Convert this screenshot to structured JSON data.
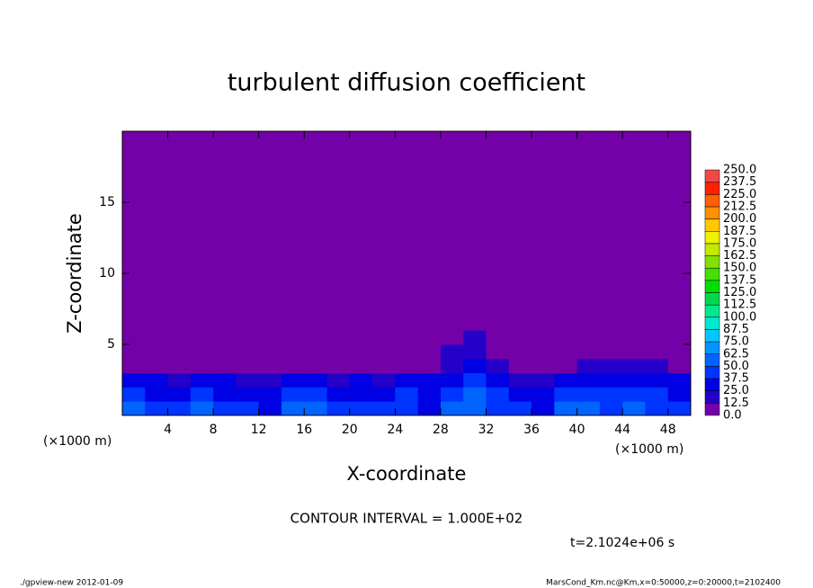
{
  "chart_data": {
    "type": "heatmap",
    "title": "turbulent diffusion coefficient",
    "xlabel": "X-coordinate",
    "ylabel": "Z-coordinate",
    "xunit_left": "(×1000 m)",
    "xunit_right": "(×1000 m)",
    "xlim": [
      0,
      50
    ],
    "ylim": [
      0,
      20
    ],
    "xticks": [
      4,
      8,
      12,
      16,
      20,
      24,
      28,
      32,
      36,
      40,
      44,
      48
    ],
    "yticks": [
      5,
      10,
      15
    ],
    "xbins": [
      0,
      2,
      4,
      6,
      8,
      10,
      12,
      14,
      16,
      18,
      20,
      22,
      24,
      26,
      28,
      30,
      32,
      34,
      36,
      38,
      40,
      42,
      44,
      46,
      48,
      50
    ],
    "ybins": [
      0,
      1,
      2,
      3,
      4,
      5,
      6,
      20
    ],
    "z": [
      [
        50,
        45,
        40,
        55,
        45,
        40,
        35,
        60,
        50,
        40,
        45,
        40,
        45,
        35,
        50,
        55,
        45,
        40,
        30,
        50,
        55,
        45,
        50,
        45,
        40
      ],
      [
        40,
        35,
        30,
        40,
        35,
        30,
        30,
        45,
        40,
        30,
        35,
        35,
        40,
        30,
        45,
        50,
        40,
        30,
        25,
        40,
        45,
        40,
        45,
        40,
        35
      ],
      [
        25,
        25,
        20,
        25,
        25,
        20,
        20,
        30,
        25,
        20,
        25,
        20,
        30,
        25,
        35,
        40,
        30,
        20,
        15,
        30,
        35,
        30,
        35,
        30,
        25
      ],
      [
        0,
        0,
        0,
        0,
        0,
        0,
        0,
        0,
        0,
        0,
        0,
        0,
        0,
        0,
        20,
        25,
        15,
        0,
        0,
        0,
        15,
        15,
        20,
        15,
        0
      ],
      [
        0,
        0,
        0,
        0,
        0,
        0,
        0,
        0,
        0,
        0,
        0,
        0,
        0,
        0,
        15,
        13,
        0,
        0,
        0,
        0,
        0,
        0,
        0,
        0,
        0
      ],
      [
        0,
        0,
        0,
        0,
        0,
        0,
        0,
        0,
        0,
        0,
        0,
        0,
        0,
        0,
        0,
        13,
        0,
        0,
        0,
        0,
        0,
        0,
        0,
        0,
        0
      ],
      [
        0,
        0,
        0,
        0,
        0,
        0,
        0,
        0,
        0,
        0,
        0,
        0,
        0,
        0,
        0,
        0,
        0,
        0,
        0,
        0,
        0,
        0,
        0,
        0,
        0
      ]
    ],
    "colorbar": {
      "levels": [
        {
          "value": 0,
          "label": "0.0"
        },
        {
          "value": 12.5,
          "label": "12.5"
        },
        {
          "value": 25,
          "label": "25.0"
        },
        {
          "value": 37.5,
          "label": "37.5"
        },
        {
          "value": 50,
          "label": "50.0"
        },
        {
          "value": 62.5,
          "label": "62.5"
        },
        {
          "value": 75,
          "label": "75.0"
        },
        {
          "value": 87.5,
          "label": "87.5"
        },
        {
          "value": 100,
          "label": "100.0"
        },
        {
          "value": 112.5,
          "label": "112.5"
        },
        {
          "value": 125,
          "label": "125.0"
        },
        {
          "value": 137.5,
          "label": "137.5"
        },
        {
          "value": 150,
          "label": "150.0"
        },
        {
          "value": 162.5,
          "label": "162.5"
        },
        {
          "value": 175,
          "label": "175.0"
        },
        {
          "value": 187.5,
          "label": "187.5"
        },
        {
          "value": 200,
          "label": "200.0"
        },
        {
          "value": 212.5,
          "label": "212.5"
        },
        {
          "value": 225,
          "label": "225.0"
        },
        {
          "value": 237.5,
          "label": "237.5"
        },
        {
          "value": 250,
          "label": "250.0"
        }
      ],
      "colors": [
        "#7400a8",
        "#2400c8",
        "#0000e4",
        "#0034ff",
        "#0064ff",
        "#0094ff",
        "#00c8ff",
        "#00e8d0",
        "#00e890",
        "#00d850",
        "#00e000",
        "#44e000",
        "#84e000",
        "#c4e800",
        "#f0f000",
        "#ffc800",
        "#ff9000",
        "#ff6000",
        "#ff2000",
        "#f04848"
      ]
    },
    "contour_note": "CONTOUR INTERVAL = 1.000E+02",
    "time_note": "t=2.1024e+06 s",
    "footer_left": "./gpview-new   2012-01-09",
    "footer_right": "MarsCond_Km.nc@Km,x=0:50000,z=0:20000,t=2102400"
  }
}
